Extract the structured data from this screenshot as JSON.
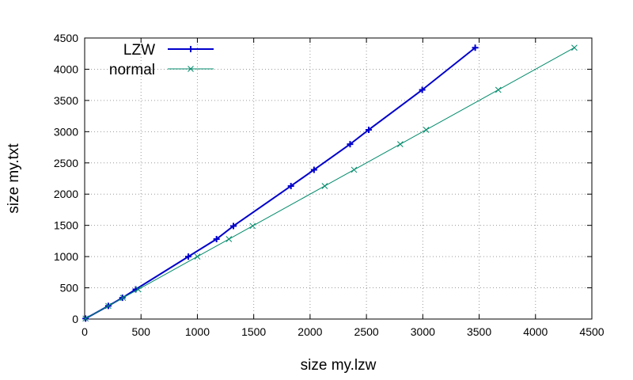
{
  "chart_data": {
    "type": "line",
    "title": "",
    "xlabel": "size my.lzw",
    "ylabel": "size my.txt",
    "xlim": [
      0,
      4500
    ],
    "ylim": [
      0,
      4500
    ],
    "xticks": [
      0,
      500,
      1000,
      1500,
      2000,
      2500,
      3000,
      3500,
      4000,
      4500
    ],
    "yticks": [
      0,
      500,
      1000,
      1500,
      2000,
      2500,
      3000,
      3500,
      4000,
      4500
    ],
    "grid": true,
    "legend_position": "top-left",
    "series": [
      {
        "name": "LZW",
        "color": "#0000cc",
        "marker": "plus",
        "x": [
          8,
          210,
          335,
          453,
          920,
          1170,
          1320,
          1830,
          2035,
          2355,
          2520,
          2995,
          3465
        ],
        "y": [
          8,
          210,
          340,
          475,
          1000,
          1280,
          1490,
          2130,
          2390,
          2800,
          3030,
          3670,
          4345
        ]
      },
      {
        "name": "normal",
        "color": "#008b6b",
        "marker": "x",
        "x": [
          8,
          210,
          340,
          475,
          1000,
          1280,
          1490,
          2130,
          2390,
          2800,
          3030,
          3670,
          4345
        ],
        "y": [
          8,
          210,
          340,
          475,
          1000,
          1280,
          1490,
          2130,
          2390,
          2800,
          3030,
          3670,
          4345
        ]
      }
    ]
  }
}
